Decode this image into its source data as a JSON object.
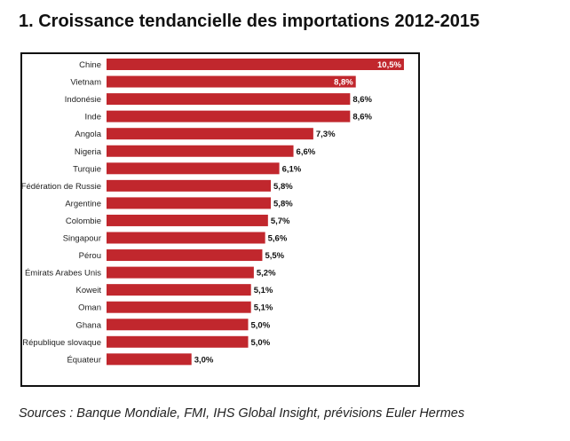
{
  "title": "1. Croissance tendancielle des importations 2012-2015",
  "sources": "Sources : Banque Mondiale, FMI, IHS Global Insight, prévisions Euler Hermes",
  "colors": {
    "bar": "#c1272d",
    "inside_label": "#ffffff",
    "outside_label": "#111111"
  },
  "chart_data": {
    "type": "bar",
    "orientation": "horizontal",
    "title": "1. Croissance tendancielle des importations 2012-2015",
    "categories": [
      "Chine",
      "Vietnam",
      "Indonésie",
      "Inde",
      "Angola",
      "Nigeria",
      "Turquie",
      "Fédération de Russie",
      "Argentine",
      "Colombie",
      "Singapour",
      "Pérou",
      "Émirats Arabes Unis",
      "Koweit",
      "Oman",
      "Ghana",
      "République slovaque",
      "Équateur"
    ],
    "values": [
      10.5,
      8.8,
      8.6,
      8.6,
      7.3,
      6.6,
      6.1,
      5.8,
      5.8,
      5.7,
      5.6,
      5.5,
      5.2,
      5.1,
      5.1,
      5.0,
      5.0,
      3.0
    ],
    "value_labels": [
      "10,5%",
      "8,8%",
      "8,6%",
      "8,6%",
      "7,3%",
      "6,6%",
      "6,1%",
      "5,8%",
      "5,8%",
      "5,7%",
      "5,6%",
      "5,5%",
      "5,2%",
      "5,1%",
      "5,1%",
      "5,0%",
      "5,0%",
      "3,0%"
    ],
    "labels_inside": [
      true,
      true,
      false,
      false,
      false,
      false,
      false,
      false,
      false,
      false,
      false,
      false,
      false,
      false,
      false,
      false,
      false,
      false
    ],
    "xlabel": "",
    "ylabel": "",
    "grid": false,
    "legend": "none"
  }
}
